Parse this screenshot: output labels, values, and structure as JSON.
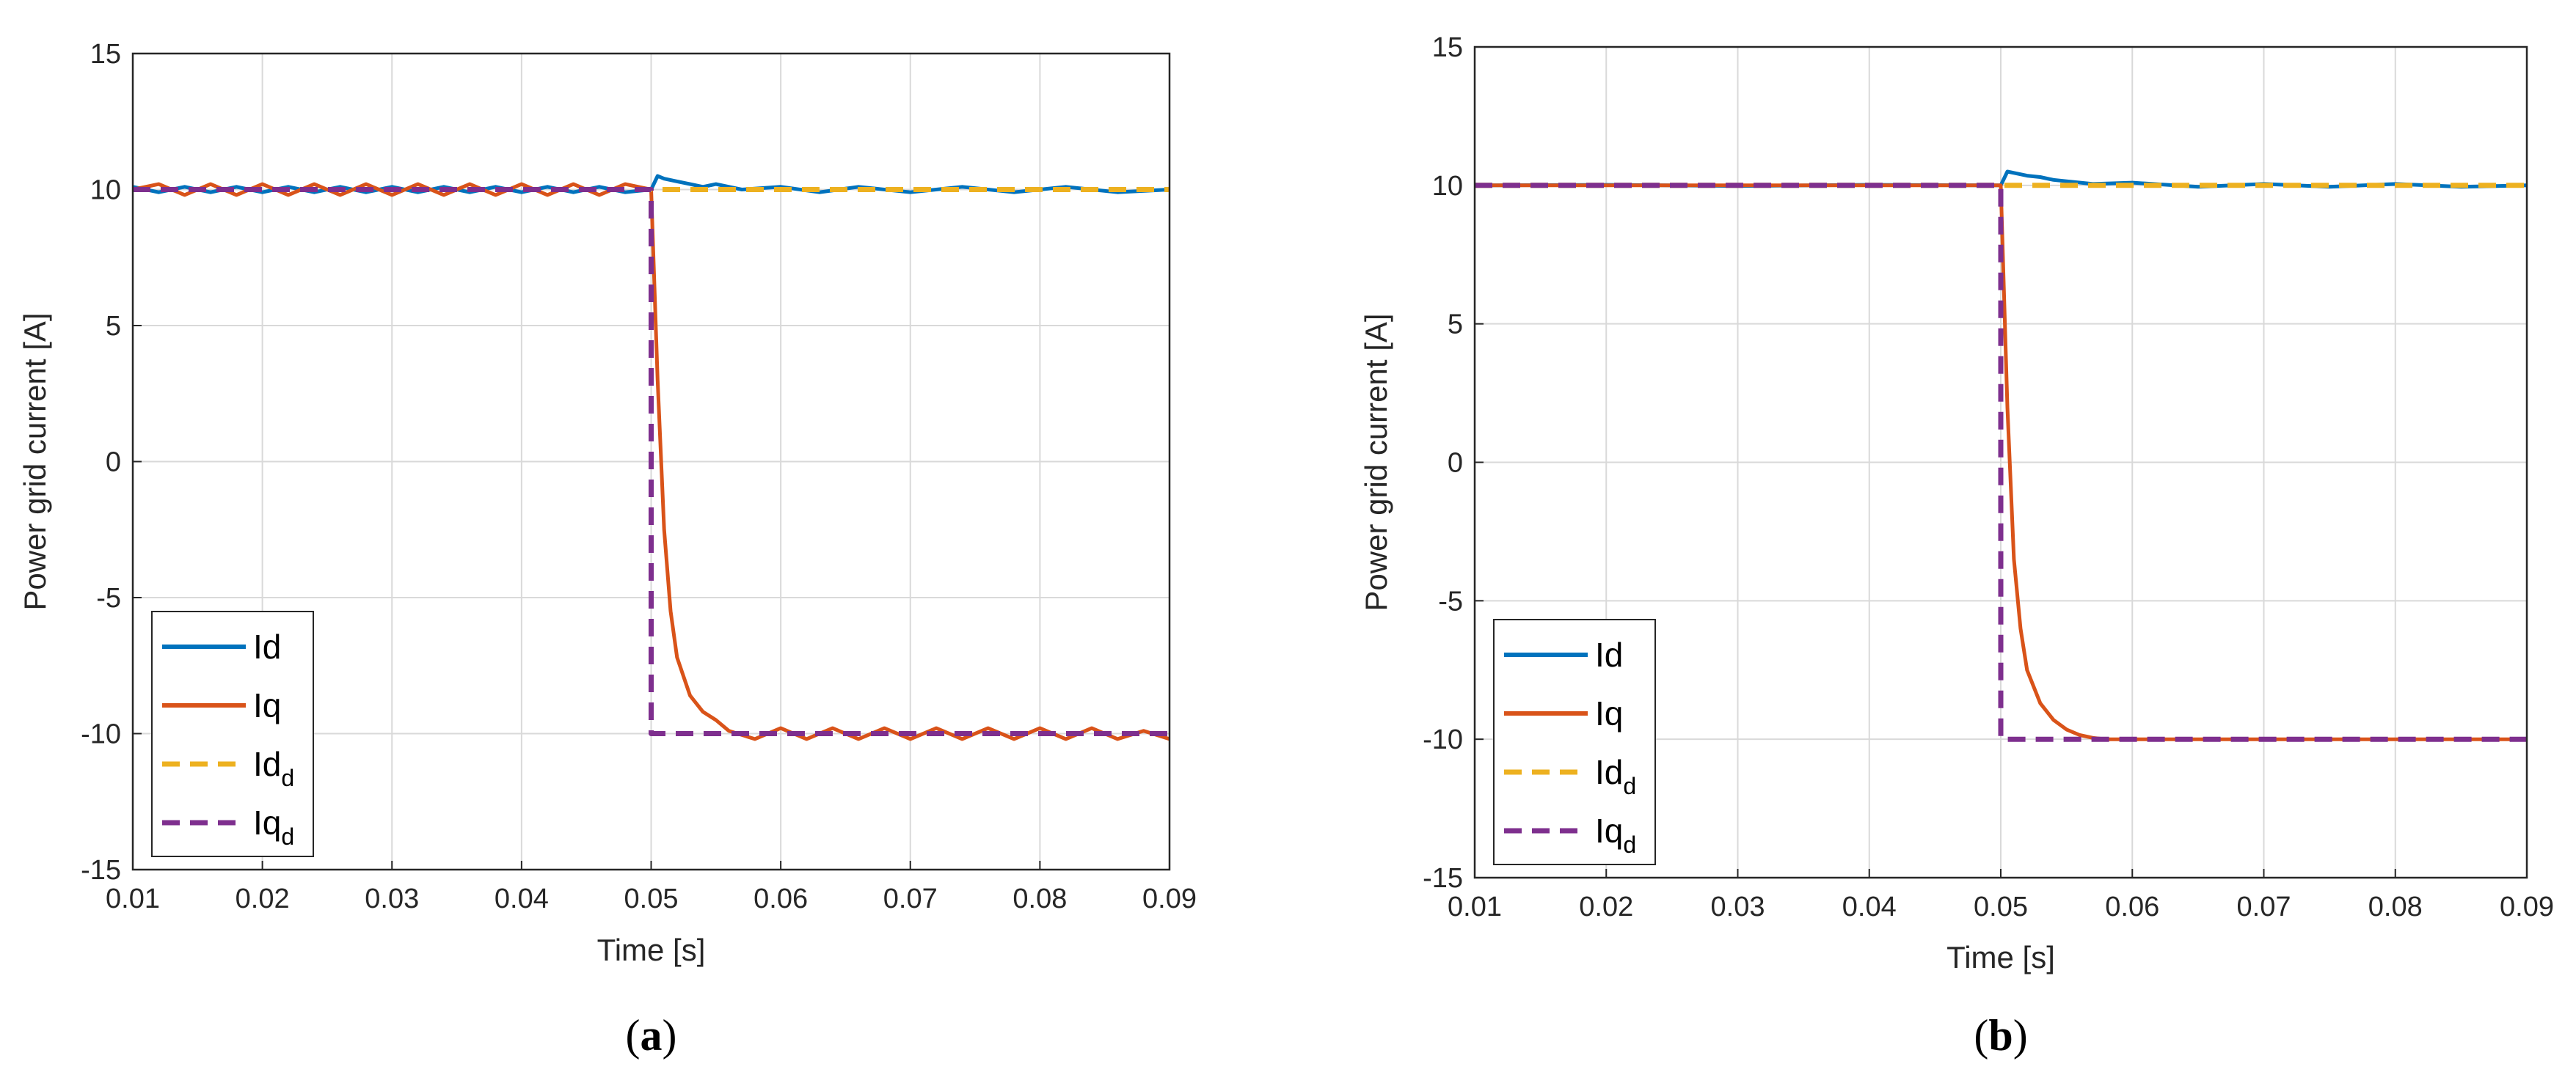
{
  "colors": {
    "Id": "#0072BD",
    "Iq": "#D95319",
    "Id_d": "#EDB120",
    "Iq_d": "#7E2F8E",
    "grid": "#d9d9d9",
    "frame": "#262626"
  },
  "chart_data": [
    {
      "type": "line",
      "panel_label": "a",
      "xlabel": "Time [s]",
      "ylabel": "Power grid current [A]",
      "xlim": [
        0.01,
        0.09
      ],
      "ylim": [
        -15,
        15
      ],
      "xticks": [
        "0.01",
        "0.02",
        "0.03",
        "0.04",
        "0.05",
        "0.06",
        "0.07",
        "0.08",
        "0.09"
      ],
      "yticks": [
        "15",
        "10",
        "5",
        "0",
        "-5",
        "-10",
        "-15"
      ],
      "grid": true,
      "legend_position": "bottom-left",
      "step_time": 0.05,
      "series": [
        {
          "name": "Id",
          "base": "Id",
          "sub": "",
          "dash": "solid",
          "color_key": "Id",
          "x": [
            0.01,
            0.012,
            0.014,
            0.016,
            0.018,
            0.02,
            0.022,
            0.024,
            0.026,
            0.028,
            0.03,
            0.032,
            0.034,
            0.036,
            0.038,
            0.04,
            0.042,
            0.044,
            0.046,
            0.048,
            0.05,
            0.0505,
            0.051,
            0.052,
            0.053,
            0.054,
            0.055,
            0.057,
            0.06,
            0.063,
            0.066,
            0.07,
            0.074,
            0.078,
            0.082,
            0.086,
            0.09
          ],
          "y": [
            10.1,
            9.9,
            10.1,
            9.9,
            10.1,
            9.9,
            10.1,
            9.9,
            10.1,
            9.9,
            10.1,
            9.9,
            10.1,
            9.9,
            10.1,
            9.9,
            10.1,
            9.9,
            10.1,
            9.9,
            10.0,
            10.5,
            10.4,
            10.3,
            10.2,
            10.1,
            10.2,
            10.0,
            10.1,
            9.9,
            10.1,
            9.9,
            10.1,
            9.9,
            10.1,
            9.9,
            10.0
          ]
        },
        {
          "name": "Iq",
          "base": "Iq",
          "sub": "",
          "dash": "solid",
          "color_key": "Iq",
          "x": [
            0.01,
            0.012,
            0.014,
            0.016,
            0.018,
            0.02,
            0.022,
            0.024,
            0.026,
            0.028,
            0.03,
            0.032,
            0.034,
            0.036,
            0.038,
            0.04,
            0.042,
            0.044,
            0.046,
            0.048,
            0.05,
            0.0505,
            0.051,
            0.0515,
            0.052,
            0.053,
            0.054,
            0.055,
            0.056,
            0.058,
            0.06,
            0.062,
            0.064,
            0.066,
            0.068,
            0.07,
            0.072,
            0.074,
            0.076,
            0.078,
            0.08,
            0.082,
            0.084,
            0.086,
            0.088,
            0.09
          ],
          "y": [
            10.0,
            10.2,
            9.8,
            10.2,
            9.8,
            10.2,
            9.8,
            10.2,
            9.8,
            10.2,
            9.8,
            10.2,
            9.8,
            10.2,
            9.8,
            10.2,
            9.8,
            10.2,
            9.8,
            10.2,
            10.0,
            3.0,
            -2.5,
            -5.5,
            -7.2,
            -8.6,
            -9.2,
            -9.5,
            -9.9,
            -10.2,
            -9.8,
            -10.2,
            -9.8,
            -10.2,
            -9.8,
            -10.2,
            -9.8,
            -10.2,
            -9.8,
            -10.2,
            -9.8,
            -10.2,
            -9.8,
            -10.2,
            -9.9,
            -10.2
          ]
        },
        {
          "name": "Id_d",
          "base": "Id",
          "sub": "d",
          "dash": "dashed",
          "color_key": "Id_d",
          "x": [
            0.01,
            0.09
          ],
          "y": [
            10.0,
            10.0
          ]
        },
        {
          "name": "Iq_d",
          "base": "Iq",
          "sub": "d",
          "dash": "dashed",
          "color_key": "Iq_d",
          "x": [
            0.01,
            0.05,
            0.05,
            0.09
          ],
          "y": [
            10.0,
            10.0,
            -10.0,
            -10.0
          ]
        }
      ]
    },
    {
      "type": "line",
      "panel_label": "b",
      "xlabel": "Time [s]",
      "ylabel": "Power grid current [A]",
      "xlim": [
        0.01,
        0.09
      ],
      "ylim": [
        -15,
        15
      ],
      "xticks": [
        "0.01",
        "0.02",
        "0.03",
        "0.04",
        "0.05",
        "0.06",
        "0.07",
        "0.08",
        "0.09"
      ],
      "yticks": [
        "15",
        "10",
        "5",
        "0",
        "-5",
        "-10",
        "-15"
      ],
      "grid": true,
      "legend_position": "bottom-left",
      "step_time": 0.05,
      "series": [
        {
          "name": "Id",
          "base": "Id",
          "sub": "",
          "dash": "solid",
          "color_key": "Id",
          "x": [
            0.01,
            0.02,
            0.03,
            0.04,
            0.05,
            0.0505,
            0.051,
            0.052,
            0.053,
            0.054,
            0.055,
            0.057,
            0.06,
            0.065,
            0.07,
            0.075,
            0.08,
            0.085,
            0.09
          ],
          "y": [
            10.0,
            10.02,
            9.98,
            10.02,
            10.0,
            10.5,
            10.45,
            10.35,
            10.3,
            10.2,
            10.15,
            10.05,
            10.1,
            9.95,
            10.05,
            9.95,
            10.05,
            9.95,
            10.0
          ]
        },
        {
          "name": "Iq",
          "base": "Iq",
          "sub": "",
          "dash": "solid",
          "color_key": "Iq",
          "x": [
            0.01,
            0.02,
            0.03,
            0.04,
            0.05,
            0.0505,
            0.051,
            0.0515,
            0.052,
            0.053,
            0.054,
            0.055,
            0.056,
            0.057,
            0.058,
            0.06,
            0.065,
            0.07,
            0.08,
            0.09
          ],
          "y": [
            10.0,
            10.0,
            10.0,
            10.0,
            10.0,
            2.0,
            -3.5,
            -6.0,
            -7.5,
            -8.7,
            -9.3,
            -9.65,
            -9.85,
            -9.95,
            -10.0,
            -10.0,
            -10.0,
            -10.0,
            -10.0,
            -10.0
          ]
        },
        {
          "name": "Id_d",
          "base": "Id",
          "sub": "d",
          "dash": "dashed",
          "color_key": "Id_d",
          "x": [
            0.01,
            0.09
          ],
          "y": [
            10.0,
            10.0
          ]
        },
        {
          "name": "Iq_d",
          "base": "Iq",
          "sub": "d",
          "dash": "dashed",
          "color_key": "Iq_d",
          "x": [
            0.01,
            0.05,
            0.05,
            0.09
          ],
          "y": [
            10.0,
            10.0,
            -10.0,
            -10.0
          ]
        }
      ]
    }
  ]
}
